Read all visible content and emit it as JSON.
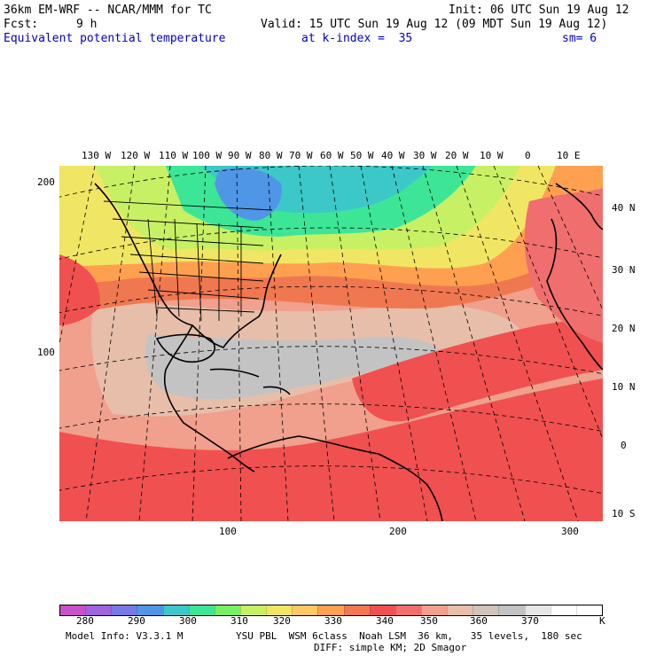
{
  "header": {
    "model": "36km EM-WRF -- NCAR/MMM for TC",
    "init": "Init: 06 UTC Sun 19 Aug 12",
    "fcst_label": "Fcst:",
    "fcst_value": "9 h",
    "valid": "Valid: 15 UTC Sun 19 Aug 12 (09 MDT Sun 19 Aug 12)",
    "field": "Equivalent potential temperature",
    "level": "at k-index =  35",
    "smoothing": "sm= 6"
  },
  "map": {
    "longitude_labels": [
      "130 W",
      "120 W",
      "110 W",
      "100 W",
      "90 W",
      "80 W",
      "70 W",
      "60 W",
      "50 W",
      "40 W",
      "30 W",
      "20 W",
      "10 W",
      "0",
      "10 E"
    ],
    "latitude_labels": [
      "40 N",
      "30 N",
      "20 N",
      "10 N",
      "0",
      "10 S"
    ],
    "grid_y_labels": [
      "200",
      "100"
    ],
    "grid_x_labels": [
      "100",
      "200",
      "300"
    ]
  },
  "colorbar": {
    "labels": [
      "280",
      "290",
      "300",
      "310",
      "320",
      "330",
      "340",
      "350",
      "360",
      "370"
    ],
    "unit": "K",
    "colors": [
      "#c850c8",
      "#a064dc",
      "#7878e6",
      "#5096e6",
      "#3cc8c8",
      "#3ce696",
      "#78f064",
      "#c8f064",
      "#f0e664",
      "#ffc864",
      "#ffa050",
      "#f07850",
      "#f05050",
      "#f06e6e",
      "#f0a08c",
      "#e6beaa",
      "#d2c3b9",
      "#c3c3c3",
      "#e6e6e6",
      "#ffffff",
      "#ffffff"
    ]
  },
  "footer": {
    "model_info": "Model Info: V3.3.1 M",
    "physics": "YSU PBL  WSM 6class  Noah LSM  36 km,   35 levels,  180 sec",
    "diffusion": "DIFF: simple KM; 2D Smagor"
  }
}
